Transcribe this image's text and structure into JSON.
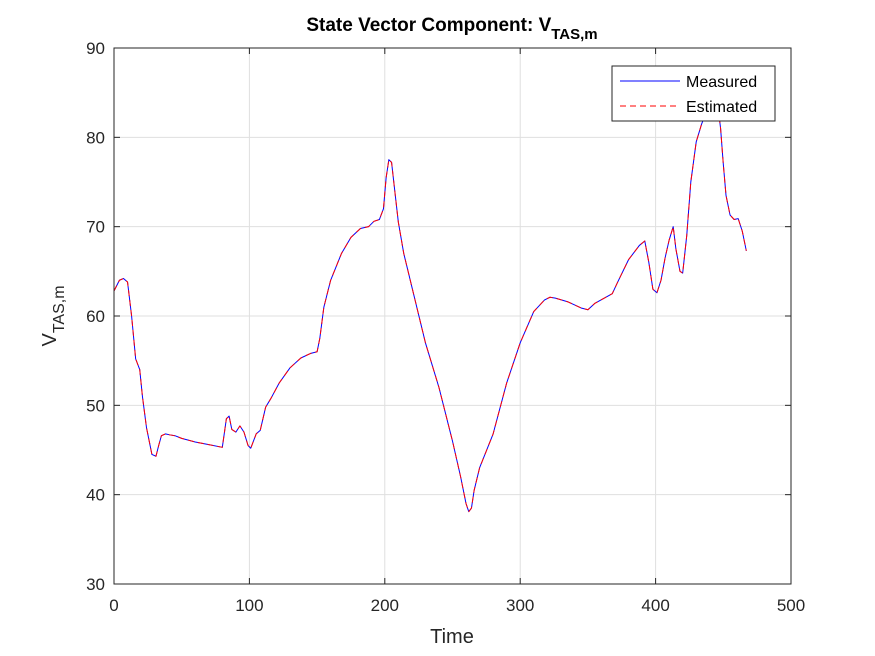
{
  "chart_data": {
    "type": "line",
    "title": "State Vector Component: V",
    "title_subscript": "TAS,m",
    "xlabel": "Time",
    "ylabel": "V",
    "ylabel_subscript": "TAS,m",
    "xlim": [
      0,
      500
    ],
    "ylim": [
      30,
      90
    ],
    "xticks": [
      "0",
      "100",
      "200",
      "300",
      "400",
      "500"
    ],
    "yticks": [
      "30",
      "40",
      "50",
      "60",
      "70",
      "80",
      "90"
    ],
    "grid": true,
    "legend_position": "top-right",
    "colors": {
      "measured": "#0000ff",
      "estimated": "#ff0000"
    },
    "series": [
      {
        "name": "Measured",
        "style": "solid",
        "x": [
          0,
          4,
          7,
          10,
          13,
          16,
          19,
          21,
          24,
          28,
          31,
          33,
          35,
          38,
          41,
          45,
          50,
          60,
          70,
          80,
          83,
          85,
          87,
          90,
          93,
          96,
          99,
          101,
          105,
          108,
          112,
          116,
          122,
          130,
          138,
          145,
          150,
          152,
          155,
          160,
          168,
          175,
          182,
          188,
          192,
          196,
          199,
          201,
          203,
          205,
          207,
          210,
          214,
          218,
          222,
          230,
          240,
          250,
          256,
          260,
          262,
          264,
          266,
          270,
          280,
          290,
          300,
          310,
          318,
          322,
          326,
          335,
          345,
          350,
          355,
          362,
          368,
          372,
          380,
          388,
          392,
          395,
          398,
          401,
          404,
          407,
          410,
          413,
          415,
          418,
          420,
          423,
          426,
          430,
          434,
          438,
          442,
          446,
          448,
          450,
          452,
          455,
          458,
          461,
          464,
          467
        ],
        "y": [
          62.8,
          64.0,
          64.2,
          63.8,
          60.0,
          55.2,
          54.0,
          51.0,
          47.5,
          44.5,
          44.3,
          45.5,
          46.6,
          46.8,
          46.7,
          46.6,
          46.3,
          45.9,
          45.6,
          45.3,
          48.5,
          48.8,
          47.3,
          47.0,
          47.7,
          47.0,
          45.5,
          45.2,
          46.8,
          47.2,
          49.8,
          50.8,
          52.5,
          54.2,
          55.3,
          55.8,
          56.0,
          57.5,
          61.0,
          64.0,
          67.0,
          68.8,
          69.8,
          70.0,
          70.6,
          70.8,
          72.0,
          75.5,
          77.5,
          77.2,
          74.5,
          70.5,
          67.0,
          64.5,
          62.0,
          57.0,
          52.0,
          46.0,
          42.0,
          39.0,
          38.1,
          38.5,
          40.5,
          43.0,
          46.8,
          52.5,
          57.0,
          60.5,
          61.8,
          62.1,
          62.0,
          61.6,
          60.9,
          60.7,
          61.4,
          62.0,
          62.5,
          63.8,
          66.3,
          67.9,
          68.4,
          66.0,
          63.0,
          62.6,
          64.0,
          66.5,
          68.5,
          70.0,
          67.5,
          65.0,
          64.8,
          69.0,
          75.0,
          79.5,
          81.5,
          83.0,
          84.0,
          83.5,
          81.0,
          77.0,
          73.5,
          71.3,
          70.8,
          70.9,
          69.5,
          67.3
        ]
      },
      {
        "name": "Estimated",
        "style": "dashed",
        "x": [
          0,
          4,
          7,
          10,
          13,
          16,
          19,
          21,
          24,
          28,
          31,
          33,
          35,
          38,
          41,
          45,
          50,
          60,
          70,
          80,
          83,
          85,
          87,
          90,
          93,
          96,
          99,
          101,
          105,
          108,
          112,
          116,
          122,
          130,
          138,
          145,
          150,
          152,
          155,
          160,
          168,
          175,
          182,
          188,
          192,
          196,
          199,
          201,
          203,
          205,
          207,
          210,
          214,
          218,
          222,
          230,
          240,
          250,
          256,
          260,
          262,
          264,
          266,
          270,
          280,
          290,
          300,
          310,
          318,
          322,
          326,
          335,
          345,
          350,
          355,
          362,
          368,
          372,
          380,
          388,
          392,
          395,
          398,
          401,
          404,
          407,
          410,
          413,
          415,
          418,
          420,
          423,
          426,
          430,
          434,
          438,
          442,
          446,
          448,
          450,
          452,
          455,
          458,
          461,
          464,
          467
        ],
        "y": [
          62.8,
          64.0,
          64.2,
          63.8,
          60.0,
          55.2,
          54.0,
          51.0,
          47.5,
          44.5,
          44.3,
          45.5,
          46.6,
          46.8,
          46.7,
          46.6,
          46.3,
          45.9,
          45.6,
          45.3,
          48.5,
          48.8,
          47.3,
          47.0,
          47.7,
          47.0,
          45.5,
          45.2,
          46.8,
          47.2,
          49.8,
          50.8,
          52.5,
          54.2,
          55.3,
          55.8,
          56.0,
          57.5,
          61.0,
          64.0,
          67.0,
          68.8,
          69.8,
          70.0,
          70.6,
          70.8,
          72.0,
          75.5,
          77.5,
          77.2,
          74.5,
          70.5,
          67.0,
          64.5,
          62.0,
          57.0,
          52.0,
          46.0,
          42.0,
          39.0,
          38.1,
          38.5,
          40.5,
          43.0,
          46.8,
          52.5,
          57.0,
          60.5,
          61.8,
          62.1,
          62.0,
          61.6,
          60.9,
          60.7,
          61.4,
          62.0,
          62.5,
          63.8,
          66.3,
          67.9,
          68.4,
          66.0,
          63.0,
          62.6,
          64.0,
          66.5,
          68.5,
          70.0,
          67.5,
          65.0,
          64.8,
          69.0,
          75.0,
          79.5,
          81.5,
          83.0,
          84.0,
          83.5,
          81.0,
          77.0,
          73.5,
          71.3,
          70.8,
          70.9,
          69.5,
          67.3
        ]
      }
    ]
  }
}
